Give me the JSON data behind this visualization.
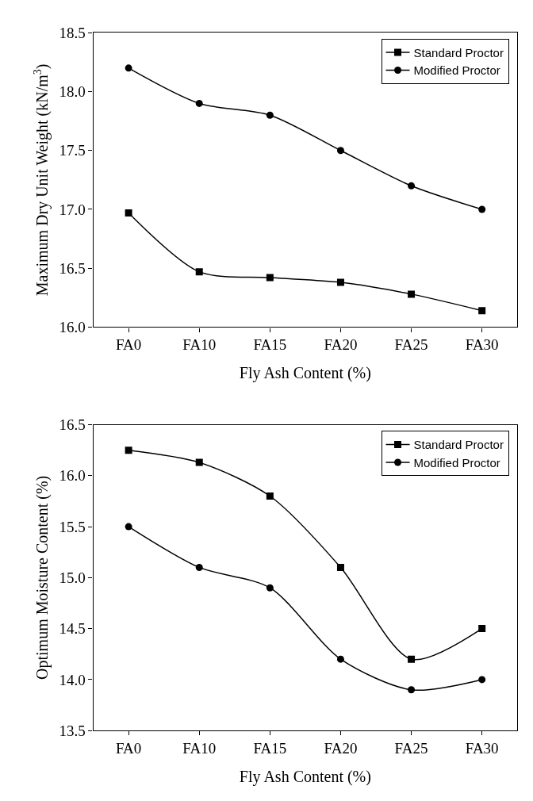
{
  "chart_data": [
    {
      "type": "line",
      "xlabel": "Fly Ash Content (%)",
      "ylabel": "Maximum Dry Unit Weight (kN/m$^{3}$)",
      "categories": [
        "FA0",
        "FA10",
        "FA15",
        "FA20",
        "FA25",
        "FA30"
      ],
      "ylim": [
        16.0,
        18.5
      ],
      "yticks": [
        {
          "value": 16.0,
          "label": "16.0"
        },
        {
          "value": 16.5,
          "label": "16.5"
        },
        {
          "value": 17.0,
          "label": "17.0"
        },
        {
          "value": 17.5,
          "label": "17.5"
        },
        {
          "value": 18.0,
          "label": "18.0"
        },
        {
          "value": 18.5,
          "label": "18.5"
        }
      ],
      "legend": "top right",
      "line_style": "solid",
      "series": [
        {
          "name": "Standard Proctor",
          "color": "#000000",
          "marker": "square",
          "values": [
            16.97,
            16.47,
            16.42,
            16.38,
            16.28,
            16.14
          ]
        },
        {
          "name": "Modified Proctor",
          "color": "#000000",
          "marker": "circle",
          "values": [
            18.2,
            17.9,
            17.8,
            17.5,
            17.2,
            17.0
          ]
        }
      ]
    },
    {
      "type": "line",
      "xlabel": "Fly Ash Content (%)",
      "ylabel": "Optimum Moisture Content (%)",
      "categories": [
        "FA0",
        "FA10",
        "FA15",
        "FA20",
        "FA25",
        "FA30"
      ],
      "ylim": [
        13.5,
        16.5
      ],
      "yticks": [
        {
          "value": 13.5,
          "label": "13.5"
        },
        {
          "value": 14.0,
          "label": "14.0"
        },
        {
          "value": 14.5,
          "label": "14.5"
        },
        {
          "value": 15.0,
          "label": "15.0"
        },
        {
          "value": 15.5,
          "label": "15.5"
        },
        {
          "value": 16.0,
          "label": "16.0"
        },
        {
          "value": 16.5,
          "label": "16.5"
        }
      ],
      "legend": "top right",
      "line_style": "solid",
      "series": [
        {
          "name": "Standard Proctor",
          "color": "#000000",
          "marker": "square",
          "values": [
            16.25,
            16.13,
            15.8,
            15.1,
            14.2,
            14.5
          ]
        },
        {
          "name": "Modified Proctor",
          "color": "#000000",
          "marker": "circle",
          "values": [
            15.5,
            15.1,
            14.9,
            14.2,
            13.9,
            14.0
          ]
        }
      ]
    }
  ]
}
